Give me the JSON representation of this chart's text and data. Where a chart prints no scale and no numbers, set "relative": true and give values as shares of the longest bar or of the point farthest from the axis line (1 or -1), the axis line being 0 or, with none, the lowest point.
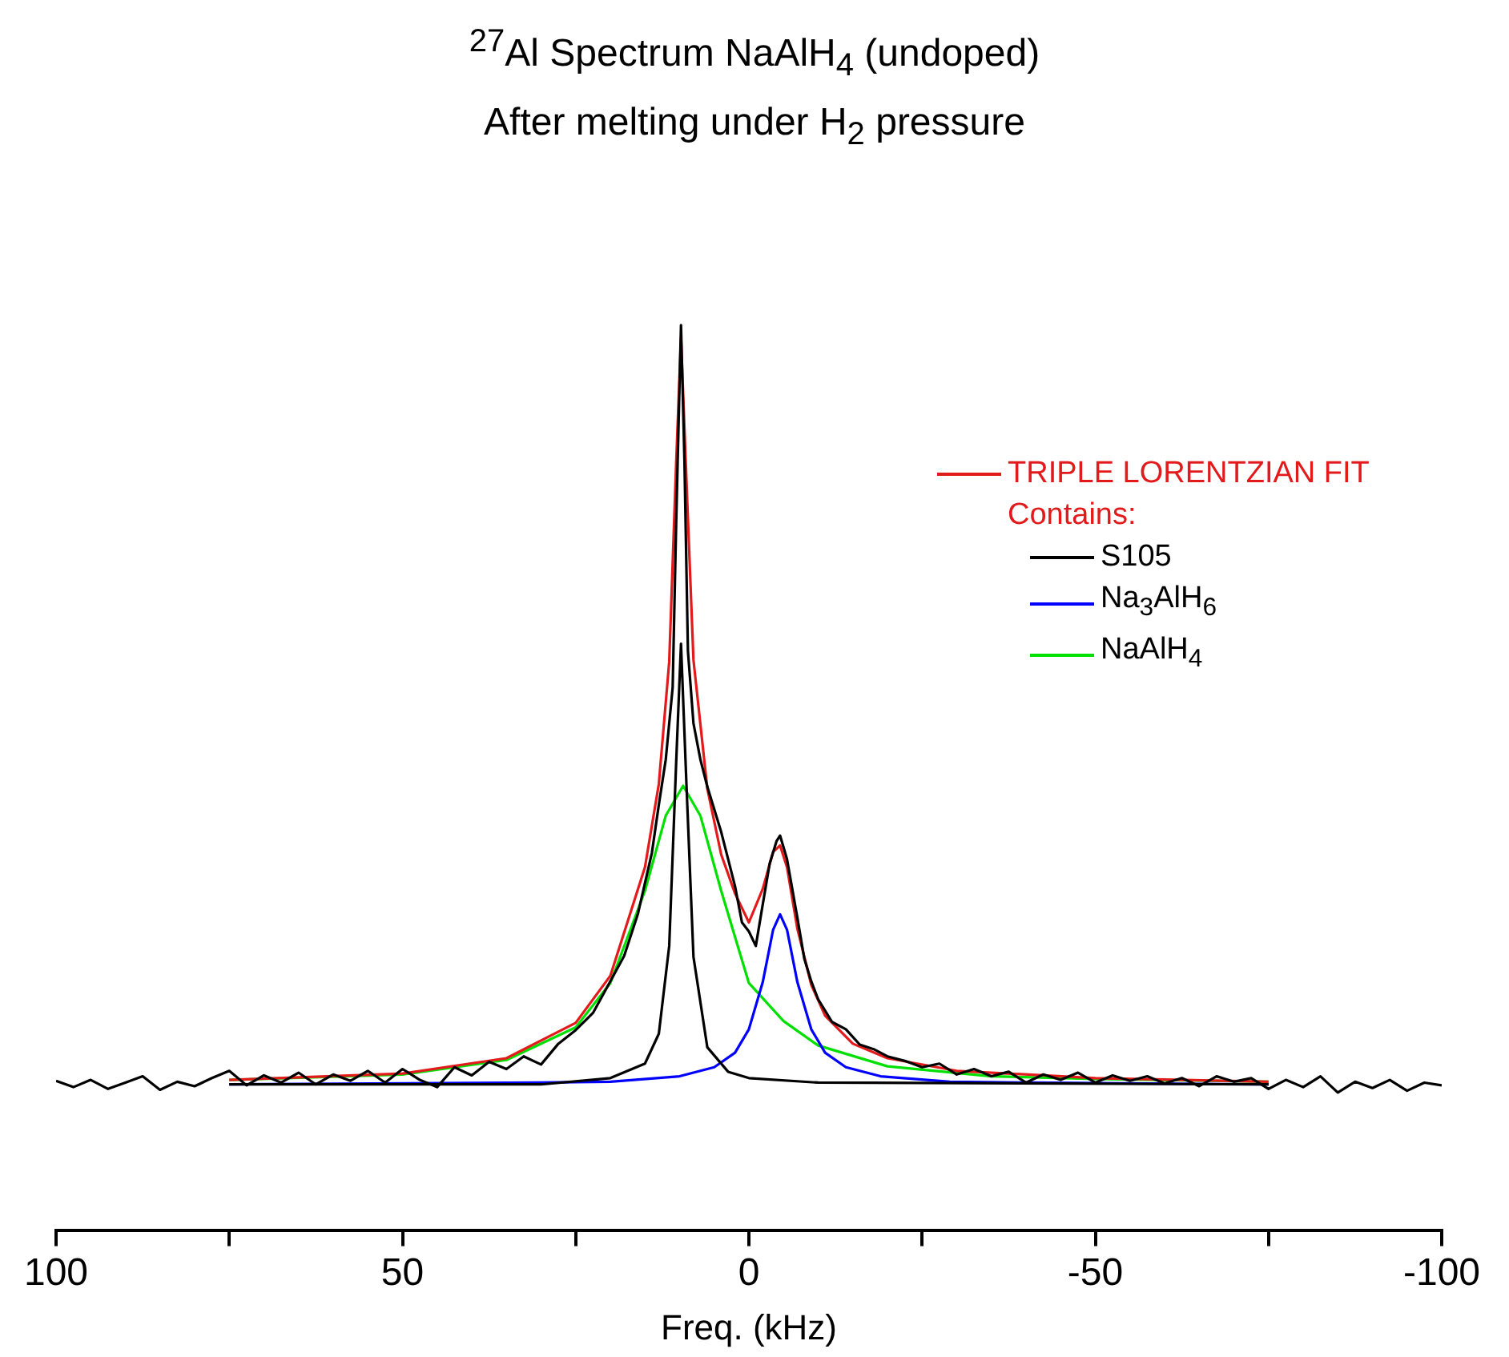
{
  "chart_data": {
    "type": "line",
    "title": "$^{27}$Al Spectrum NaAlH$_{4}$ (undoped)",
    "subtitle": "After melting under H$_{2}$ pressure",
    "xlabel": "Freq. (kHz)",
    "relative": true,
    "xlim": [
      100,
      -100
    ],
    "xticks": [
      100,
      {
        "value": 75,
        "label": null
      },
      50,
      {
        "value": 25,
        "label": null
      },
      0,
      {
        "value": -25,
        "label": null
      },
      -50,
      {
        "value": -75,
        "label": null
      },
      -100
    ],
    "grid": false,
    "legend": "right",
    "marker": "none",
    "line_style": "solid",
    "annotations": [
      "Contains:"
    ],
    "series": [
      {
        "color": "#000000",
        "x": [
          100,
          97.5,
          95,
          92.5,
          90,
          87.5,
          85,
          82.5,
          80,
          77.5,
          75,
          72.5,
          70,
          67.5,
          65,
          62.5,
          60,
          57.5,
          55,
          52.5,
          50,
          47.5,
          45,
          42.5,
          40,
          37.5,
          35,
          32.5,
          30,
          27.5,
          25,
          22.5,
          20,
          18,
          16,
          14,
          13,
          12,
          11,
          10.5,
          9.8,
          9.3,
          8.8,
          8,
          7,
          6,
          5,
          4,
          3,
          2,
          1,
          0,
          -1,
          -2,
          -3,
          -4,
          -4.5,
          -5.5,
          -7,
          -8,
          -9,
          -10,
          -12,
          -14,
          -16,
          -18,
          -20,
          -22.5,
          -25,
          -27.5,
          -30,
          -32.5,
          -35,
          -37.5,
          -40,
          -42.5,
          -45,
          -47.5,
          -50,
          -52.5,
          -55,
          -57.5,
          -60,
          -62.5,
          -65,
          -67.5,
          -70,
          -72.5,
          -75,
          -77.5,
          -80,
          -82.5,
          -85,
          -87.5,
          -90,
          -92.5,
          -95,
          -97.5,
          -100
        ],
        "values": [
          0.165,
          0.158,
          0.166,
          0.156,
          0.163,
          0.17,
          0.155,
          0.164,
          0.159,
          0.168,
          0.176,
          0.16,
          0.171,
          0.163,
          0.174,
          0.161,
          0.172,
          0.165,
          0.176,
          0.163,
          0.178,
          0.166,
          0.158,
          0.18,
          0.171,
          0.186,
          0.178,
          0.192,
          0.183,
          0.206,
          0.221,
          0.24,
          0.275,
          0.303,
          0.35,
          0.417,
          0.47,
          0.52,
          0.6,
          0.78,
          1.0,
          0.85,
          0.64,
          0.56,
          0.52,
          0.49,
          0.465,
          0.44,
          0.41,
          0.38,
          0.34,
          0.33,
          0.314,
          0.36,
          0.405,
          0.43,
          0.436,
          0.41,
          0.345,
          0.3,
          0.275,
          0.255,
          0.23,
          0.222,
          0.205,
          0.2,
          0.192,
          0.187,
          0.18,
          0.184,
          0.172,
          0.178,
          0.17,
          0.175,
          0.163,
          0.172,
          0.166,
          0.174,
          0.163,
          0.171,
          0.165,
          0.17,
          0.162,
          0.168,
          0.159,
          0.17,
          0.164,
          0.168,
          0.156,
          0.166,
          0.158,
          0.17,
          0.152,
          0.164,
          0.157,
          0.166,
          0.154,
          0.163,
          0.16
        ]
      },
      {
        "name": "TRIPLE LORENTZIAN FIT",
        "color": "#e31a1c",
        "x": [
          75,
          50,
          35,
          25,
          20,
          15,
          13,
          11.5,
          10.5,
          9.8,
          9,
          8,
          6,
          4,
          2,
          0,
          -2,
          -3.5,
          -4.5,
          -5.5,
          -7,
          -9,
          -11,
          -15,
          -20,
          -30,
          -50,
          -75
        ],
        "values": [
          0.166,
          0.173,
          0.19,
          0.229,
          0.281,
          0.401,
          0.493,
          0.628,
          0.847,
          0.986,
          0.826,
          0.63,
          0.488,
          0.415,
          0.372,
          0.34,
          0.377,
          0.418,
          0.425,
          0.401,
          0.333,
          0.271,
          0.237,
          0.206,
          0.19,
          0.176,
          0.168,
          0.164
        ]
      },
      {
        "name": "S105",
        "color": "#000000",
        "x": [
          75,
          30,
          20,
          15,
          13,
          11.5,
          10.5,
          9.8,
          9,
          8,
          6,
          3,
          0,
          -10,
          -75
        ],
        "values": [
          0.161,
          0.161,
          0.168,
          0.184,
          0.217,
          0.314,
          0.516,
          0.648,
          0.49,
          0.302,
          0.202,
          0.175,
          0.168,
          0.163,
          0.161
        ]
      },
      {
        "name": "Na$_{3}$AlH$_{6}$",
        "color": "#0000ff",
        "x": [
          75,
          30,
          20,
          10,
          5,
          2,
          0,
          -2,
          -3.5,
          -4.5,
          -5.5,
          -7,
          -9,
          -11,
          -14,
          -19,
          -29,
          -40,
          -75
        ],
        "values": [
          0.161,
          0.163,
          0.164,
          0.17,
          0.18,
          0.196,
          0.222,
          0.274,
          0.332,
          0.349,
          0.332,
          0.274,
          0.222,
          0.196,
          0.18,
          0.17,
          0.164,
          0.163,
          0.161
        ]
      },
      {
        "name": "NaAlH$_{4}$",
        "color": "#00e000",
        "x": [
          75,
          50,
          35,
          25,
          20,
          15,
          12,
          9.5,
          7,
          4,
          0,
          -5,
          -10,
          -20,
          -35,
          -50,
          -75
        ],
        "values": [
          0.166,
          0.172,
          0.188,
          0.224,
          0.273,
          0.375,
          0.458,
          0.491,
          0.458,
          0.375,
          0.273,
          0.231,
          0.204,
          0.181,
          0.17,
          0.167,
          0.164
        ]
      }
    ]
  }
}
